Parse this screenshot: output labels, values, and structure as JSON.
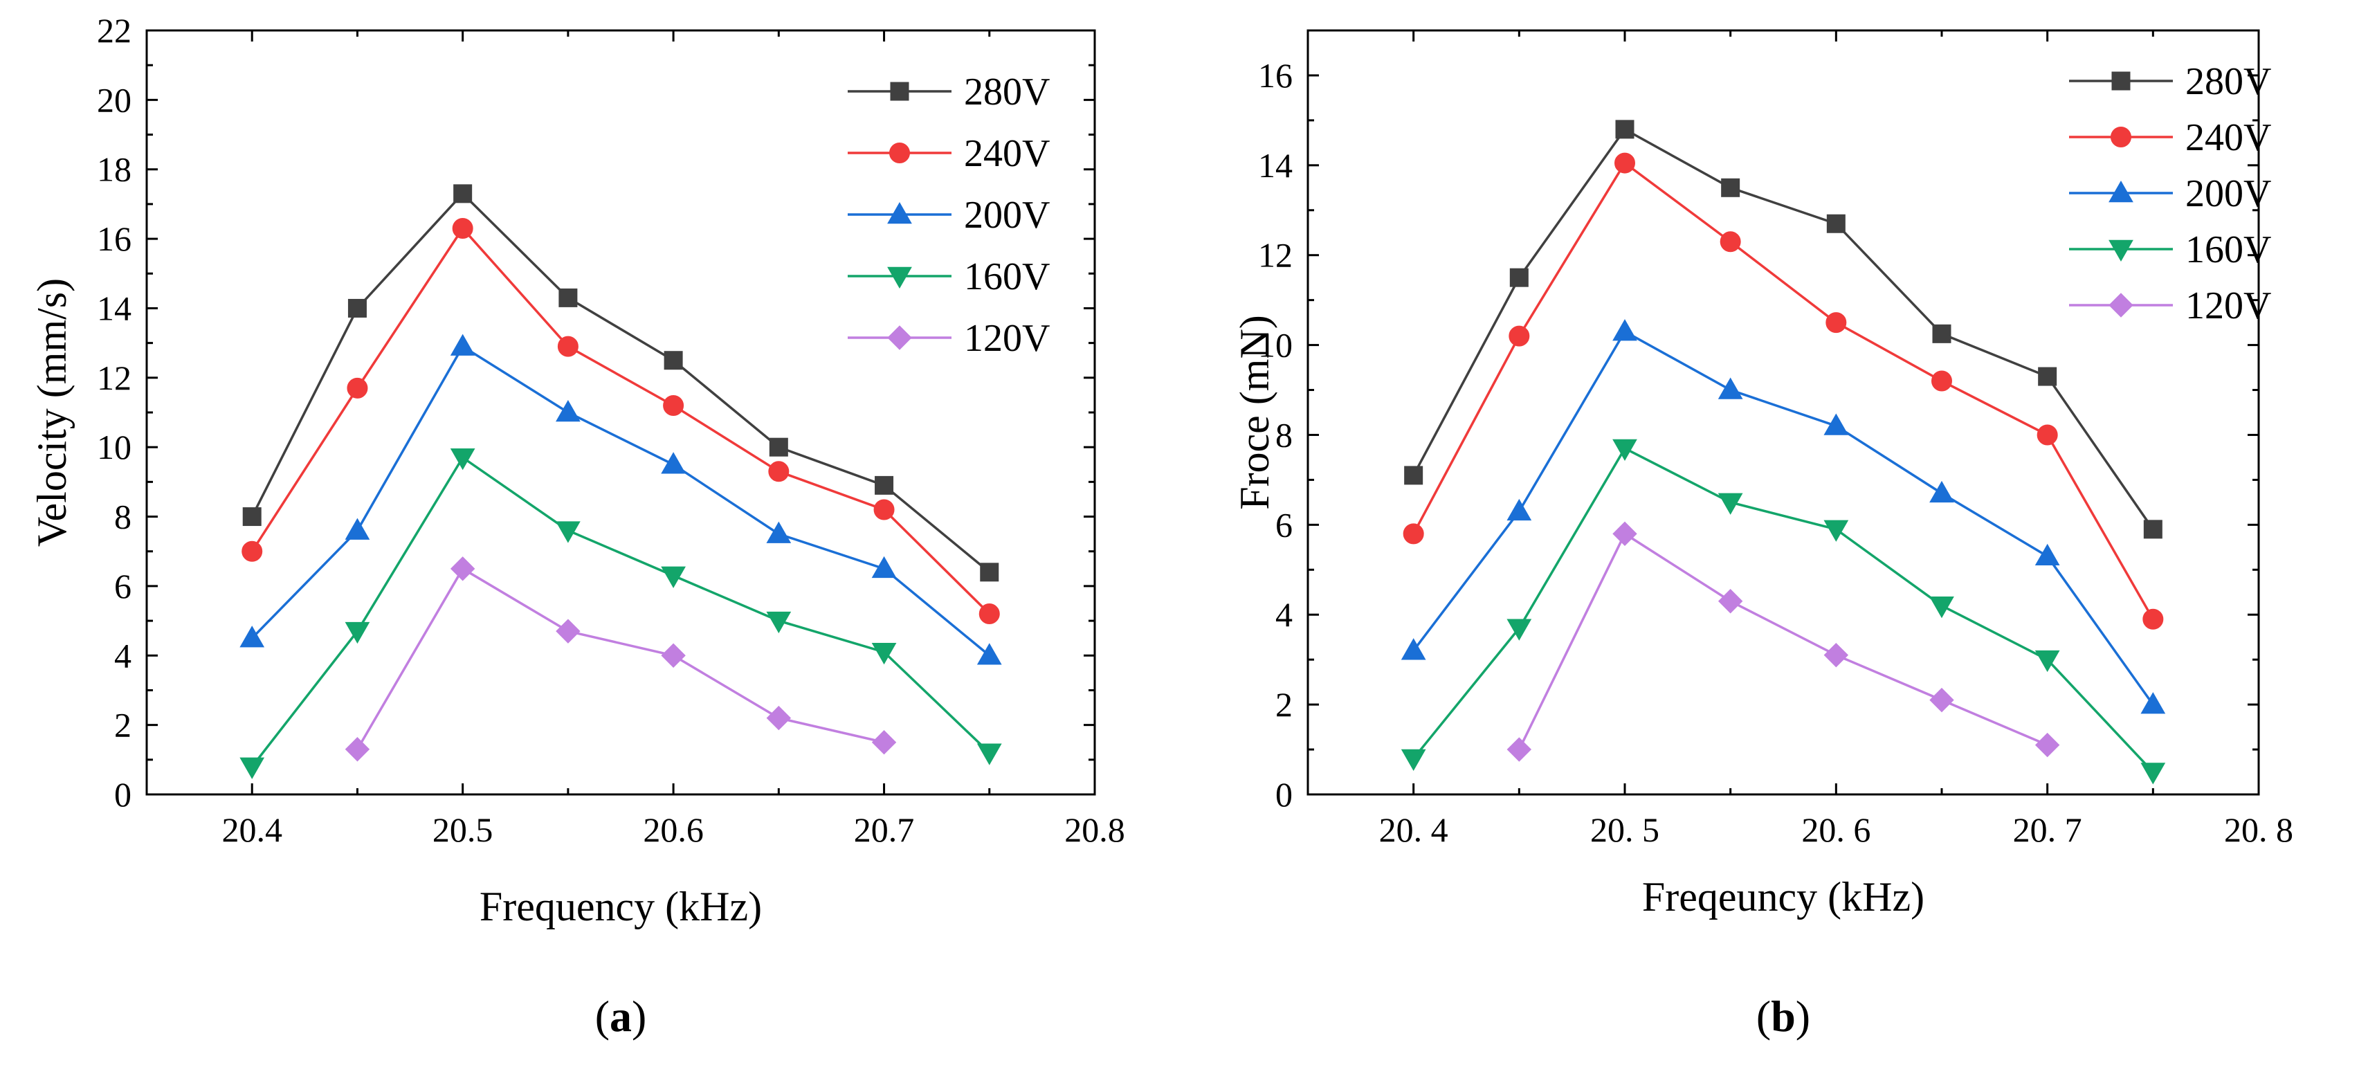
{
  "chart_data": [
    {
      "type": "line",
      "panel_label": "a",
      "xlabel": "Frequency (kHz)",
      "ylabel": "Velocity (mm/s)",
      "xlim": [
        20.35,
        20.8
      ],
      "ylim": [
        0,
        22
      ],
      "x_ticks": [
        20.4,
        20.5,
        20.6,
        20.7,
        20.8
      ],
      "x_tick_labels": [
        "20.4",
        "20.5",
        "20.6",
        "20.7",
        "20.8"
      ],
      "y_ticks": [
        0,
        2,
        4,
        6,
        8,
        10,
        12,
        14,
        16,
        18,
        20,
        22
      ],
      "y_tick_labels": [
        "0",
        "2",
        "4",
        "6",
        "8",
        "10",
        "12",
        "14",
        "16",
        "18",
        "20",
        "22"
      ],
      "legend_position": "top-right",
      "grid": false,
      "series": [
        {
          "name": "280V",
          "color": "#404040",
          "marker": "square",
          "x": [
            20.4,
            20.45,
            20.5,
            20.55,
            20.6,
            20.65,
            20.7,
            20.75
          ],
          "values": [
            8.0,
            14.0,
            17.3,
            14.3,
            12.5,
            10.0,
            8.9,
            6.4
          ]
        },
        {
          "name": "240V",
          "color": "#f03a3a",
          "marker": "circle",
          "x": [
            20.4,
            20.45,
            20.5,
            20.55,
            20.6,
            20.65,
            20.7,
            20.75
          ],
          "values": [
            7.0,
            11.7,
            16.3,
            12.9,
            11.2,
            9.3,
            8.2,
            5.2
          ]
        },
        {
          "name": "200V",
          "color": "#1a6fd6",
          "marker": "triangle-up",
          "x": [
            20.4,
            20.45,
            20.5,
            20.55,
            20.6,
            20.65,
            20.7,
            20.75
          ],
          "values": [
            4.5,
            7.6,
            12.9,
            11.0,
            9.5,
            7.5,
            6.5,
            4.0
          ]
        },
        {
          "name": "160V",
          "color": "#13a56a",
          "marker": "triangle-down",
          "x": [
            20.4,
            20.45,
            20.5,
            20.55,
            20.6,
            20.65,
            20.7,
            20.75
          ],
          "values": [
            0.8,
            4.7,
            9.7,
            7.6,
            6.3,
            5.0,
            4.1,
            1.2
          ]
        },
        {
          "name": "120V",
          "color": "#c17fe0",
          "marker": "diamond",
          "x": [
            20.45,
            20.5,
            20.55,
            20.6,
            20.65,
            20.7
          ],
          "values": [
            1.3,
            6.5,
            4.7,
            4.0,
            2.2,
            1.5
          ]
        }
      ]
    },
    {
      "type": "line",
      "panel_label": "b",
      "xlabel": "Freqeuncy (kHz)",
      "ylabel": "Froce (mN)",
      "xlim": [
        20.35,
        20.8
      ],
      "ylim": [
        0,
        17
      ],
      "x_ticks": [
        20.4,
        20.5,
        20.6,
        20.7,
        20.8
      ],
      "x_tick_labels": [
        "20. 4",
        "20. 5",
        "20. 6",
        "20. 7",
        "20. 8"
      ],
      "y_ticks": [
        0,
        2,
        4,
        6,
        8,
        10,
        12,
        14,
        16
      ],
      "y_tick_labels": [
        "0",
        "2",
        "4",
        "6",
        "8",
        "10",
        "12",
        "14",
        "16"
      ],
      "legend_position": "top-right",
      "grid": false,
      "series": [
        {
          "name": "280V",
          "color": "#404040",
          "marker": "square",
          "x": [
            20.4,
            20.45,
            20.5,
            20.55,
            20.6,
            20.65,
            20.7,
            20.75
          ],
          "values": [
            7.1,
            11.5,
            14.8,
            13.5,
            12.7,
            10.25,
            9.3,
            5.9
          ]
        },
        {
          "name": "240V",
          "color": "#f03a3a",
          "marker": "circle",
          "x": [
            20.4,
            20.45,
            20.5,
            20.55,
            20.6,
            20.65,
            20.7,
            20.75
          ],
          "values": [
            5.8,
            10.2,
            14.05,
            12.3,
            10.5,
            9.2,
            8.0,
            3.9
          ]
        },
        {
          "name": "200V",
          "color": "#1a6fd6",
          "marker": "triangle-up",
          "x": [
            20.4,
            20.45,
            20.5,
            20.55,
            20.6,
            20.65,
            20.7,
            20.75
          ],
          "values": [
            3.2,
            6.3,
            10.3,
            9.0,
            8.2,
            6.7,
            5.3,
            2.0
          ]
        },
        {
          "name": "160V",
          "color": "#13a56a",
          "marker": "triangle-down",
          "x": [
            20.4,
            20.45,
            20.5,
            20.55,
            20.6,
            20.65,
            20.7,
            20.75
          ],
          "values": [
            0.8,
            3.7,
            7.7,
            6.5,
            5.9,
            4.2,
            3.0,
            0.5
          ]
        },
        {
          "name": "120V",
          "color": "#c17fe0",
          "marker": "diamond",
          "x": [
            20.45,
            20.5,
            20.55,
            20.6,
            20.65,
            20.7
          ],
          "values": [
            1.0,
            5.8,
            4.3,
            3.1,
            2.1,
            1.1
          ]
        }
      ]
    }
  ]
}
